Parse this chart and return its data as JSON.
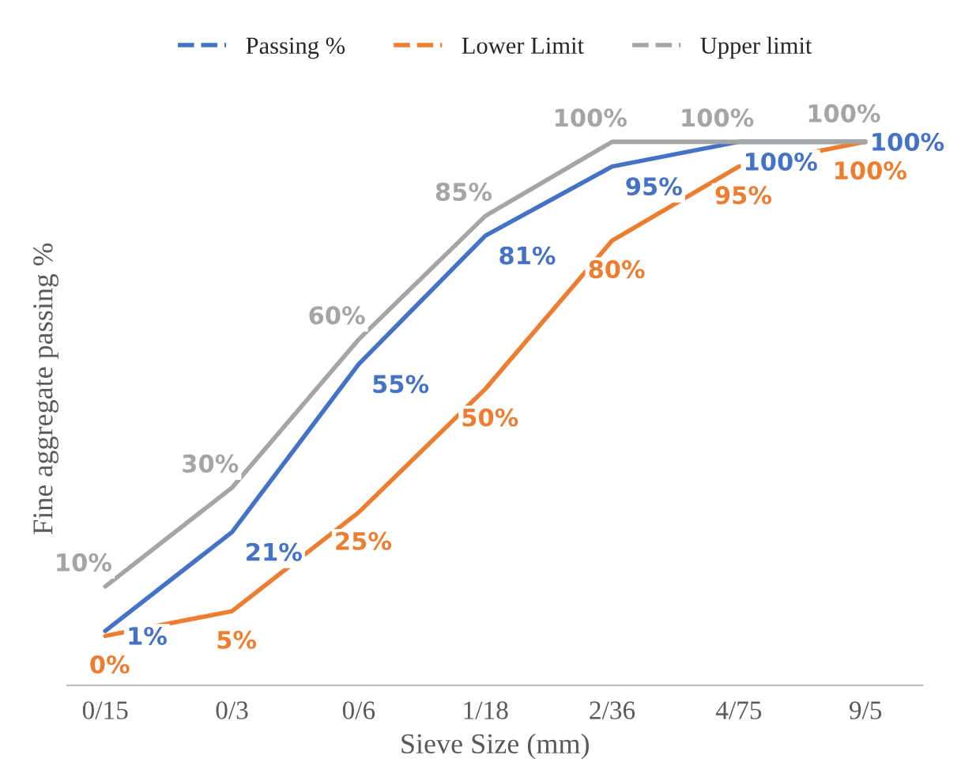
{
  "chart_data": {
    "type": "line",
    "xlabel": "Sieve Size (mm)",
    "ylabel": "Fine aggregate passing %",
    "categories": [
      "0/15",
      "0/3",
      "0/6",
      "1/18",
      "2/36",
      "4/75",
      "9/5"
    ],
    "series": [
      {
        "name": "Passing %",
        "color": "#4472c4",
        "values": [
          1,
          21,
          55,
          81,
          95,
          100,
          100
        ],
        "value_labels": [
          "1%",
          "21%",
          "55%",
          "81%",
          "95%",
          "100%",
          "100%"
        ]
      },
      {
        "name": "Lower Limit",
        "color": "#ed7d31",
        "values": [
          0,
          5,
          25,
          50,
          80,
          95,
          100
        ],
        "value_labels": [
          "0%",
          "5%",
          "25%",
          "50%",
          "80%",
          "95%",
          "100%"
        ]
      },
      {
        "name": "Upper limit",
        "color": "#a5a5a5",
        "values": [
          10,
          30,
          60,
          85,
          100,
          100,
          100
        ],
        "value_labels": [
          "10%",
          "30%",
          "60%",
          "85%",
          "100%",
          "100%",
          "100%"
        ]
      }
    ],
    "tick_labels": "x",
    "legend": "top",
    "grid": false,
    "marker": "none",
    "line_style": "solid"
  }
}
